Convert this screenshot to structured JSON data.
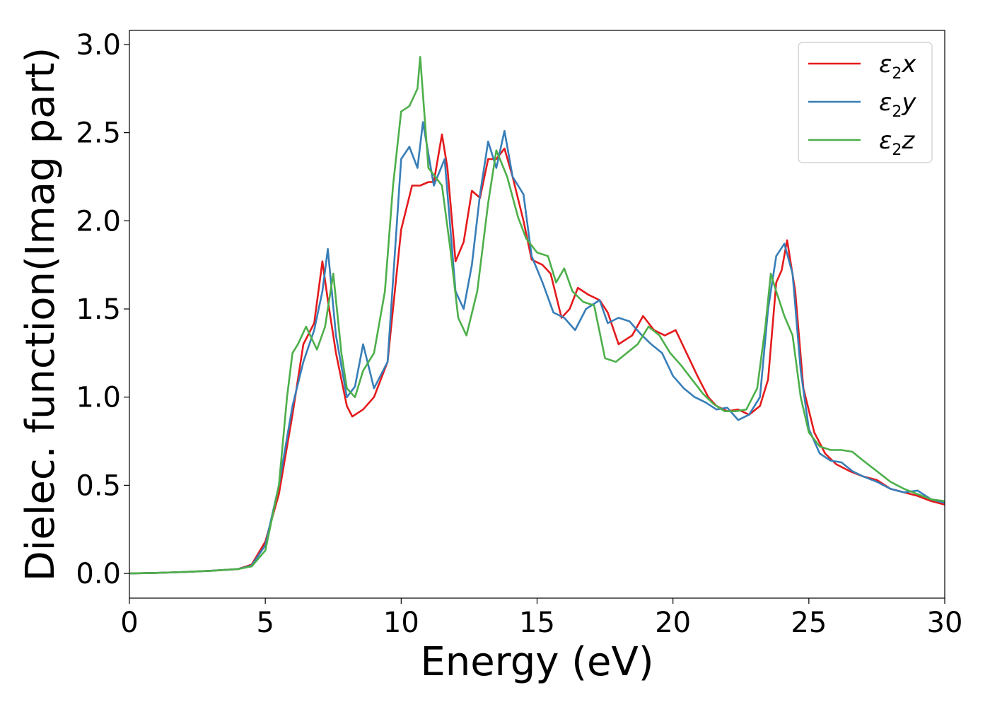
{
  "chart_data": {
    "type": "line",
    "title": "",
    "xlabel": "Energy (eV)",
    "ylabel": "Dielec. function(Imag part)",
    "xlim": [
      0,
      30
    ],
    "ylim": [
      -0.14,
      3.08
    ],
    "xticks": [
      0,
      5,
      10,
      15,
      20,
      25,
      30
    ],
    "xtick_labels": [
      "0",
      "5",
      "10",
      "15",
      "20",
      "25",
      "30"
    ],
    "yticks": [
      0.0,
      0.5,
      1.0,
      1.5,
      2.0,
      2.5,
      3.0
    ],
    "ytick_labels": [
      "0.0",
      "0.5",
      "1.0",
      "1.5",
      "2.0",
      "2.5",
      "3.0"
    ],
    "grid": false,
    "legend_position": "top-right",
    "series": [
      {
        "name": "ε2x",
        "legend_base": "ε",
        "legend_sub": "2",
        "legend_tail": "x",
        "color": "#e41a1c",
        "x": [
          0,
          1,
          2,
          3,
          4,
          4.5,
          5,
          5.5,
          6,
          6.4,
          6.8,
          7.1,
          7.3,
          7.6,
          8,
          8.2,
          8.6,
          9,
          9.5,
          10,
          10.4,
          10.7,
          11,
          11.2,
          11.5,
          11.7,
          12,
          12.3,
          12.6,
          12.9,
          13.2,
          13.5,
          13.8,
          14.1,
          14.5,
          14.8,
          15.2,
          15.5,
          15.9,
          16.2,
          16.5,
          16.9,
          17.3,
          17.6,
          18,
          18.5,
          18.9,
          19.3,
          19.7,
          20.1,
          20.5,
          20.9,
          21.3,
          21.6,
          22,
          22.4,
          22.8,
          23.2,
          23.5,
          23.8,
          24,
          24.2,
          24.5,
          24.8,
          25.2,
          25.6,
          26,
          26.5,
          27,
          27.5,
          28,
          28.5,
          29,
          29.5,
          30
        ],
        "y": [
          0.0,
          0.003,
          0.008,
          0.015,
          0.025,
          0.05,
          0.18,
          0.45,
          0.9,
          1.3,
          1.42,
          1.77,
          1.55,
          1.25,
          0.95,
          0.89,
          0.93,
          1.0,
          1.2,
          1.95,
          2.2,
          2.2,
          2.22,
          2.22,
          2.49,
          2.3,
          1.77,
          1.88,
          2.17,
          2.13,
          2.35,
          2.35,
          2.41,
          2.25,
          2.0,
          1.78,
          1.75,
          1.7,
          1.45,
          1.5,
          1.62,
          1.58,
          1.55,
          1.48,
          1.3,
          1.35,
          1.46,
          1.38,
          1.35,
          1.38,
          1.25,
          1.12,
          1.0,
          0.95,
          0.92,
          0.93,
          0.9,
          0.95,
          1.1,
          1.65,
          1.72,
          1.89,
          1.6,
          1.05,
          0.8,
          0.68,
          0.62,
          0.58,
          0.55,
          0.53,
          0.48,
          0.46,
          0.44,
          0.41,
          0.39
        ]
      },
      {
        "name": "ε2y",
        "legend_base": "ε",
        "legend_sub": "2",
        "legend_tail": "y",
        "color": "#377eb8",
        "x": [
          0,
          1,
          2,
          3,
          4,
          4.5,
          5,
          5.5,
          6,
          6.4,
          6.8,
          7.1,
          7.3,
          7.6,
          8,
          8.3,
          8.6,
          9,
          9.5,
          10,
          10.3,
          10.6,
          10.8,
          11.2,
          11.6,
          12,
          12.3,
          12.6,
          12.9,
          13.2,
          13.5,
          13.8,
          14.1,
          14.5,
          14.8,
          15.2,
          15.6,
          16,
          16.4,
          16.8,
          17.3,
          17.6,
          18,
          18.4,
          18.8,
          19.2,
          19.6,
          20,
          20.4,
          20.8,
          21.2,
          21.6,
          22,
          22.4,
          22.8,
          23.2,
          23.5,
          23.8,
          24.1,
          24.4,
          24.7,
          25,
          25.4,
          25.8,
          26.2,
          26.6,
          27,
          27.5,
          28,
          28.5,
          29,
          29.5,
          30
        ],
        "y": [
          0.0,
          0.003,
          0.008,
          0.015,
          0.025,
          0.045,
          0.16,
          0.5,
          0.95,
          1.2,
          1.38,
          1.6,
          1.84,
          1.35,
          1.0,
          1.06,
          1.3,
          1.05,
          1.2,
          2.35,
          2.42,
          2.3,
          2.56,
          2.2,
          2.35,
          1.6,
          1.5,
          1.75,
          2.15,
          2.45,
          2.3,
          2.51,
          2.25,
          2.15,
          1.8,
          1.65,
          1.48,
          1.45,
          1.38,
          1.5,
          1.55,
          1.42,
          1.45,
          1.43,
          1.36,
          1.3,
          1.25,
          1.12,
          1.05,
          1.0,
          0.97,
          0.93,
          0.94,
          0.87,
          0.9,
          1.0,
          1.5,
          1.8,
          1.87,
          1.7,
          1.15,
          0.82,
          0.68,
          0.64,
          0.63,
          0.58,
          0.55,
          0.52,
          0.48,
          0.46,
          0.47,
          0.42,
          0.4
        ]
      },
      {
        "name": "ε2z",
        "legend_base": "ε",
        "legend_sub": "2",
        "legend_tail": "z",
        "color": "#4daf4a",
        "x": [
          0,
          1,
          2,
          3,
          4,
          4.5,
          5,
          5.5,
          5.8,
          6,
          6.2,
          6.5,
          6.9,
          7.2,
          7.5,
          7.8,
          8,
          8.3,
          8.6,
          9,
          9.4,
          9.7,
          10,
          10.3,
          10.6,
          10.7,
          11,
          11.5,
          11.8,
          12.1,
          12.4,
          12.8,
          13.2,
          13.5,
          13.9,
          14.3,
          14.6,
          15,
          15.4,
          15.7,
          16,
          16.3,
          16.7,
          17.1,
          17.5,
          17.9,
          18.3,
          18.7,
          19.1,
          19.5,
          19.9,
          20.3,
          20.7,
          21.1,
          21.5,
          21.9,
          22.3,
          22.7,
          23.1,
          23.4,
          23.6,
          23.8,
          24.1,
          24.4,
          24.7,
          25,
          25.4,
          25.8,
          26.2,
          26.6,
          27,
          27.5,
          28,
          28.5,
          29,
          29.5,
          30
        ],
        "y": [
          0.0,
          0.003,
          0.008,
          0.015,
          0.025,
          0.04,
          0.13,
          0.5,
          1.0,
          1.25,
          1.3,
          1.4,
          1.27,
          1.4,
          1.7,
          1.25,
          1.05,
          1.0,
          1.15,
          1.25,
          1.6,
          2.2,
          2.62,
          2.65,
          2.75,
          2.93,
          2.3,
          2.2,
          1.85,
          1.45,
          1.35,
          1.6,
          2.1,
          2.4,
          2.25,
          2.02,
          1.9,
          1.82,
          1.8,
          1.65,
          1.73,
          1.6,
          1.54,
          1.52,
          1.22,
          1.2,
          1.25,
          1.3,
          1.4,
          1.35,
          1.25,
          1.18,
          1.1,
          1.02,
          0.96,
          0.92,
          0.92,
          0.93,
          1.05,
          1.4,
          1.7,
          1.6,
          1.46,
          1.35,
          1.0,
          0.8,
          0.72,
          0.7,
          0.7,
          0.69,
          0.64,
          0.58,
          0.52,
          0.48,
          0.45,
          0.42,
          0.41
        ]
      }
    ]
  }
}
